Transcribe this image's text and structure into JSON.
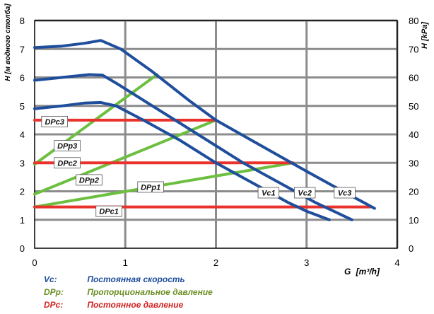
{
  "chart_data": {
    "type": "line",
    "xlabel_main": "G",
    "xlabel_unit": "[m³/h]",
    "ylabel_left": "H [м водного столба]",
    "ylabel_right": "H [kPa]",
    "xlim": [
      0,
      4
    ],
    "ylim_left": [
      0,
      8
    ],
    "ylim_right": [
      0,
      80
    ],
    "x_ticks": [
      "0",
      "1",
      "2",
      "3",
      "4"
    ],
    "y_left_ticks": [
      "0",
      "1",
      "2",
      "3",
      "4",
      "5",
      "6",
      "7",
      "8"
    ],
    "y_right_ticks": [
      "0",
      "10",
      "20",
      "30",
      "40",
      "50",
      "60",
      "70",
      "80"
    ],
    "grid": true,
    "colors": {
      "Vc": "#1f4e9c",
      "DPp": "#6cbf3f",
      "DPc": "#e8322b"
    },
    "series": [
      {
        "name": "Vc1",
        "group": "Vc",
        "x": [
          0,
          0.3,
          0.55,
          0.73,
          0.9,
          1.2,
          1.6,
          2.0,
          2.4,
          2.8,
          3.0,
          3.25
        ],
        "y": [
          4.9,
          5.0,
          5.1,
          5.12,
          5.0,
          4.5,
          3.8,
          3.0,
          2.3,
          1.6,
          1.3,
          1.0
        ],
        "label_pos": [
          2.58,
          1.95
        ]
      },
      {
        "name": "Vc2",
        "group": "Vc",
        "x": [
          0,
          0.3,
          0.6,
          0.75,
          0.9,
          1.3,
          1.8,
          2.3,
          2.7,
          3.1,
          3.5
        ],
        "y": [
          5.9,
          6.0,
          6.1,
          6.08,
          5.8,
          5.0,
          4.0,
          3.0,
          2.3,
          1.6,
          1.0
        ],
        "label_pos": [
          2.98,
          1.95
        ]
      },
      {
        "name": "Vc3",
        "group": "Vc",
        "x": [
          0,
          0.3,
          0.55,
          0.73,
          0.95,
          1.3,
          1.7,
          2.0,
          2.5,
          3.0,
          3.4,
          3.75
        ],
        "y": [
          7.05,
          7.1,
          7.2,
          7.3,
          7.0,
          6.2,
          5.2,
          4.5,
          3.6,
          2.7,
          2.0,
          1.4
        ],
        "label_pos": [
          3.42,
          1.95
        ]
      },
      {
        "name": "DPp1",
        "group": "DPp",
        "x": [
          0,
          2.85
        ],
        "y": [
          1.45,
          3.0
        ],
        "label_pos": [
          1.28,
          2.15
        ]
      },
      {
        "name": "DPp2",
        "group": "DPp",
        "x": [
          0,
          2.0
        ],
        "y": [
          1.9,
          4.5
        ],
        "label_pos": [
          0.6,
          2.4
        ]
      },
      {
        "name": "DPp3",
        "group": "DPp",
        "x": [
          0,
          1.35
        ],
        "y": [
          2.95,
          6.1
        ],
        "label_pos": [
          0.36,
          3.6
        ]
      },
      {
        "name": "DPc1",
        "group": "DPc",
        "x": [
          0,
          3.7
        ],
        "y": [
          1.45,
          1.45
        ],
        "label_pos": [
          0.82,
          1.3
        ]
      },
      {
        "name": "DPc2",
        "group": "DPc",
        "x": [
          0,
          2.85
        ],
        "y": [
          3.0,
          3.0
        ],
        "label_pos": [
          0.36,
          3.0
        ]
      },
      {
        "name": "DPc3",
        "group": "DPc",
        "x": [
          0,
          2.0
        ],
        "y": [
          4.5,
          4.5
        ],
        "label_pos": [
          0.22,
          4.45
        ]
      }
    ]
  },
  "legend": [
    {
      "key": "Vc:",
      "text": "Постоянная скорость",
      "color": "#1f4e9c"
    },
    {
      "key": "DPp:",
      "text": "Пропорциональное давление",
      "color": "#6b8e23"
    },
    {
      "key": "DPc:",
      "text": "Постоянное давление",
      "color": "#d42020"
    }
  ]
}
